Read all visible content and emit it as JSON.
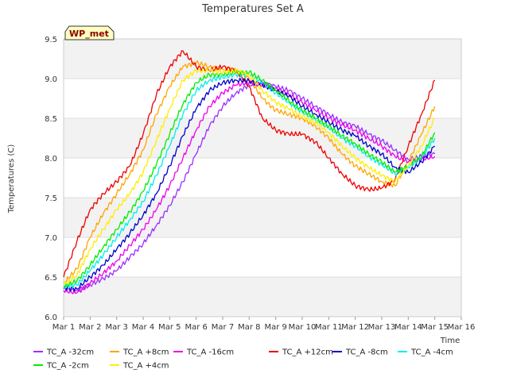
{
  "chart_data": {
    "type": "line",
    "title": "Temperatures Set A",
    "xlabel": "Time",
    "ylabel": "Temperatures (C)",
    "ylim": [
      6.0,
      9.5
    ],
    "xlim": [
      1,
      16
    ],
    "x_ticks": [
      {
        "value": 1,
        "label": "Mar 1"
      },
      {
        "value": 2,
        "label": "Mar 2"
      },
      {
        "value": 3,
        "label": "Mar 3"
      },
      {
        "value": 4,
        "label": "Mar 4"
      },
      {
        "value": 5,
        "label": "Mar 5"
      },
      {
        "value": 6,
        "label": "Mar 6"
      },
      {
        "value": 7,
        "label": "Mar 7"
      },
      {
        "value": 8,
        "label": "Mar 8"
      },
      {
        "value": 9,
        "label": "Mar 9"
      },
      {
        "value": 10,
        "label": "Mar 10"
      },
      {
        "value": 11,
        "label": "Mar 11"
      },
      {
        "value": 12,
        "label": "Mar 12"
      },
      {
        "value": 13,
        "label": "Mar 13"
      },
      {
        "value": 14,
        "label": "Mar 14"
      },
      {
        "value": 15,
        "label": "Mar 15"
      },
      {
        "value": 16,
        "label": "Mar 16"
      }
    ],
    "y_ticks": [
      {
        "value": 6.0,
        "label": "6.0"
      },
      {
        "value": 6.5,
        "label": "6.5"
      },
      {
        "value": 7.0,
        "label": "7.0"
      },
      {
        "value": 7.5,
        "label": "7.5"
      },
      {
        "value": 8.0,
        "label": "8.0"
      },
      {
        "value": 8.5,
        "label": "8.5"
      },
      {
        "value": 9.0,
        "label": "9.0"
      },
      {
        "value": 9.5,
        "label": "9.5"
      }
    ],
    "grid": true,
    "banded_background": true,
    "legend_position": "bottom",
    "annotation": "WP_met",
    "series": [
      {
        "name": "TC_A -32cm",
        "color": "#9b30ff",
        "x": [
          1,
          1.5,
          2,
          2.5,
          3,
          3.5,
          4,
          4.5,
          5,
          5.5,
          6,
          6.5,
          7,
          7.5,
          8,
          8.5,
          9,
          9.5,
          10,
          10.5,
          11,
          11.5,
          12,
          12.5,
          13,
          13.5,
          14,
          14.5,
          15
        ],
        "y": [
          6.35,
          6.33,
          6.4,
          6.48,
          6.58,
          6.75,
          6.92,
          7.15,
          7.4,
          7.7,
          8.05,
          8.4,
          8.65,
          8.82,
          8.92,
          8.95,
          8.9,
          8.85,
          8.75,
          8.65,
          8.55,
          8.45,
          8.4,
          8.3,
          8.22,
          8.1,
          7.98,
          8.02,
          8.05
        ]
      },
      {
        "name": "TC_A +8cm",
        "color": "#ffa500",
        "x": [
          1,
          1.5,
          2,
          2.5,
          3,
          3.5,
          4,
          4.5,
          5,
          5.5,
          6,
          6.5,
          7,
          7.5,
          8,
          8.5,
          9,
          9.5,
          10,
          10.5,
          11,
          11.5,
          12,
          12.5,
          13,
          13.5,
          14,
          14.5,
          15
        ],
        "y": [
          6.42,
          6.6,
          7.0,
          7.3,
          7.55,
          7.8,
          8.1,
          8.55,
          8.9,
          9.15,
          9.2,
          9.15,
          9.12,
          9.1,
          9.0,
          8.75,
          8.6,
          8.55,
          8.5,
          8.4,
          8.25,
          8.05,
          7.9,
          7.8,
          7.7,
          7.65,
          7.95,
          8.3,
          8.65
        ]
      },
      {
        "name": "TC_A -16cm",
        "color": "#ee00ee",
        "x": [
          1,
          1.5,
          2,
          2.5,
          3,
          3.5,
          4,
          4.5,
          5,
          5.5,
          6,
          6.5,
          7,
          7.5,
          8,
          8.5,
          9,
          9.5,
          10,
          10.5,
          11,
          11.5,
          12,
          12.5,
          13,
          13.5,
          14,
          14.5,
          15
        ],
        "y": [
          6.33,
          6.3,
          6.42,
          6.55,
          6.7,
          6.9,
          7.1,
          7.35,
          7.65,
          8.0,
          8.35,
          8.65,
          8.82,
          8.92,
          8.95,
          8.92,
          8.88,
          8.8,
          8.7,
          8.6,
          8.5,
          8.42,
          8.35,
          8.25,
          8.15,
          8.02,
          7.95,
          7.98,
          8.02
        ]
      },
      {
        "name": "TC_A +12cm",
        "color": "#ee0000",
        "x": [
          1,
          1.5,
          2,
          2.5,
          3,
          3.5,
          4,
          4.5,
          5,
          5.5,
          6,
          6.5,
          7,
          7.5,
          8,
          8.5,
          9,
          9.5,
          10,
          10.5,
          11,
          11.5,
          12,
          12.5,
          13,
          13.5,
          14,
          14.5,
          15
        ],
        "y": [
          6.5,
          6.95,
          7.35,
          7.55,
          7.7,
          7.9,
          8.3,
          8.8,
          9.15,
          9.35,
          9.15,
          9.1,
          9.15,
          9.1,
          8.9,
          8.5,
          8.35,
          8.3,
          8.3,
          8.2,
          8.0,
          7.8,
          7.65,
          7.6,
          7.62,
          7.72,
          8.15,
          8.55,
          8.98
        ]
      },
      {
        "name": "TC_A -8cm",
        "color": "#0000cd",
        "x": [
          1,
          1.5,
          2,
          2.5,
          3,
          3.5,
          4,
          4.5,
          5,
          5.5,
          6,
          6.5,
          7,
          7.5,
          8,
          8.5,
          9,
          9.5,
          10,
          10.5,
          11,
          11.5,
          12,
          12.5,
          13,
          13.5,
          14,
          14.5,
          15
        ],
        "y": [
          6.37,
          6.35,
          6.5,
          6.65,
          6.85,
          7.05,
          7.28,
          7.55,
          7.9,
          8.28,
          8.62,
          8.85,
          8.95,
          8.98,
          8.97,
          8.92,
          8.85,
          8.78,
          8.65,
          8.55,
          8.45,
          8.35,
          8.28,
          8.15,
          8.05,
          7.88,
          7.82,
          7.95,
          8.15
        ]
      },
      {
        "name": "TC_A -4cm",
        "color": "#00eeee",
        "x": [
          1,
          1.5,
          2,
          2.5,
          3,
          3.5,
          4,
          4.5,
          5,
          5.5,
          6,
          6.5,
          7,
          7.5,
          8,
          8.5,
          9,
          9.5,
          10,
          10.5,
          11,
          11.5,
          12,
          12.5,
          13,
          13.5,
          14,
          14.5,
          15
        ],
        "y": [
          6.38,
          6.4,
          6.58,
          6.78,
          7.0,
          7.22,
          7.45,
          7.78,
          8.15,
          8.55,
          8.85,
          8.98,
          9.02,
          9.05,
          9.05,
          8.95,
          8.82,
          8.7,
          8.58,
          8.48,
          8.38,
          8.25,
          8.15,
          8.02,
          7.92,
          7.8,
          7.88,
          8.0,
          8.25
        ]
      },
      {
        "name": "TC_A -2cm",
        "color": "#00ee00",
        "x": [
          1,
          1.5,
          2,
          2.5,
          3,
          3.5,
          4,
          4.5,
          5,
          5.5,
          6,
          6.5,
          7,
          7.5,
          8,
          8.5,
          9,
          9.5,
          10,
          10.5,
          11,
          11.5,
          12,
          12.5,
          13,
          13.5,
          14,
          14.5,
          15
        ],
        "y": [
          6.38,
          6.45,
          6.65,
          6.88,
          7.1,
          7.32,
          7.58,
          7.92,
          8.3,
          8.68,
          8.95,
          9.05,
          9.05,
          9.08,
          9.08,
          8.98,
          8.85,
          8.72,
          8.6,
          8.5,
          8.4,
          8.28,
          8.18,
          8.05,
          7.95,
          7.82,
          7.9,
          8.02,
          8.32
        ]
      },
      {
        "name": "TC_A +4cm",
        "color": "#ffee00",
        "x": [
          1,
          1.5,
          2,
          2.5,
          3,
          3.5,
          4,
          4.5,
          5,
          5.5,
          6,
          6.5,
          7,
          7.5,
          8,
          8.5,
          9,
          9.5,
          10,
          10.5,
          11,
          11.5,
          12,
          12.5,
          13,
          13.5,
          14,
          14.5,
          15
        ],
        "y": [
          6.4,
          6.52,
          6.85,
          7.1,
          7.35,
          7.55,
          7.82,
          8.22,
          8.62,
          8.98,
          9.1,
          9.1,
          9.08,
          9.1,
          9.05,
          8.85,
          8.7,
          8.62,
          8.52,
          8.45,
          8.32,
          8.15,
          8.0,
          7.88,
          7.78,
          7.7,
          7.9,
          8.15,
          8.5
        ]
      }
    ]
  }
}
